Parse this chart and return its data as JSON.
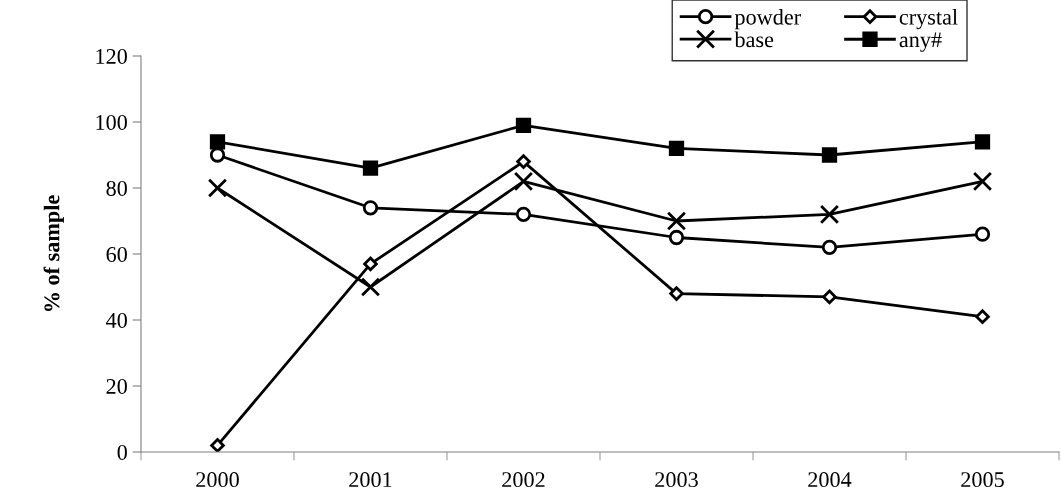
{
  "chart_data": {
    "type": "line",
    "ylabel": "% of sample",
    "categories": [
      "2000",
      "2001",
      "2002",
      "2003",
      "2004",
      "2005"
    ],
    "series": [
      {
        "name": "powder",
        "color": "#000000",
        "marker": "circle",
        "values": [
          90,
          74,
          72,
          65,
          62,
          66
        ]
      },
      {
        "name": "base",
        "color": "#000000",
        "marker": "cross",
        "values": [
          80,
          50,
          82,
          70,
          72,
          82
        ]
      },
      {
        "name": "crystal",
        "color": "#000000",
        "marker": "diamond",
        "values": [
          2,
          57,
          88,
          48,
          47,
          41
        ]
      },
      {
        "name": "any#",
        "color": "#000000",
        "marker": "square",
        "values": [
          94,
          86,
          99,
          92,
          90,
          94
        ]
      }
    ],
    "ylim": [
      0,
      120
    ],
    "yticks": [
      0,
      20,
      40,
      60,
      80,
      100,
      120
    ],
    "grid": false,
    "legend": "top right",
    "line_style": "solid"
  }
}
